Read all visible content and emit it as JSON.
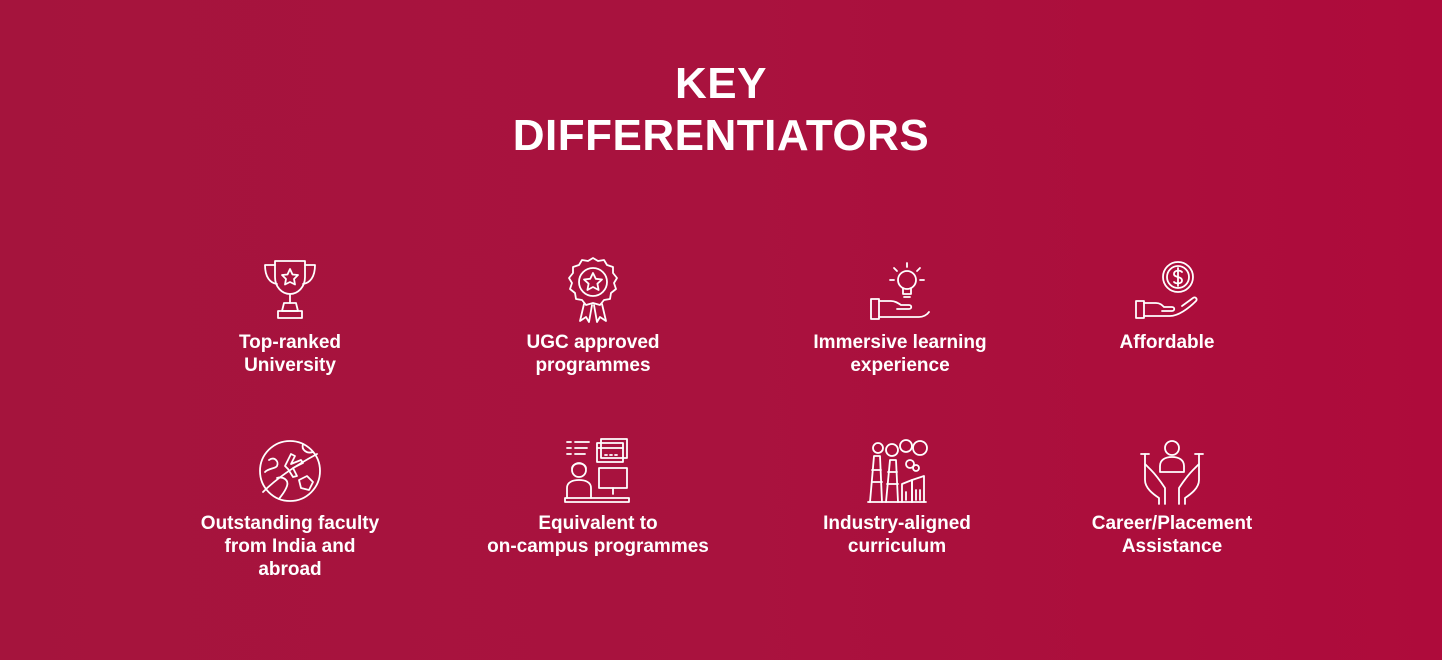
{
  "title_line1": "KEY",
  "title_line2": "DIFFERENTIATORS",
  "items": [
    {
      "icon": "trophy-icon",
      "label": "Top-ranked\nUniversity"
    },
    {
      "icon": "badge-star-icon",
      "label": "UGC approved\nprogrammes"
    },
    {
      "icon": "lightbulb-hand-icon",
      "label": "Immersive learning\nexperience"
    },
    {
      "icon": "money-hand-icon",
      "label": "Affordable"
    },
    {
      "icon": "globe-plane-icon",
      "label": "Outstanding faculty\nfrom India and\nabroad"
    },
    {
      "icon": "online-learning-icon",
      "label": "Equivalent to\non-campus programmes"
    },
    {
      "icon": "factory-icon",
      "label": "Industry-aligned\ncurriculum"
    },
    {
      "icon": "person-hands-icon",
      "label": "Career/Placement\nAssistance"
    }
  ],
  "colors": {
    "background": "#a9123e",
    "text": "#ffffff"
  }
}
